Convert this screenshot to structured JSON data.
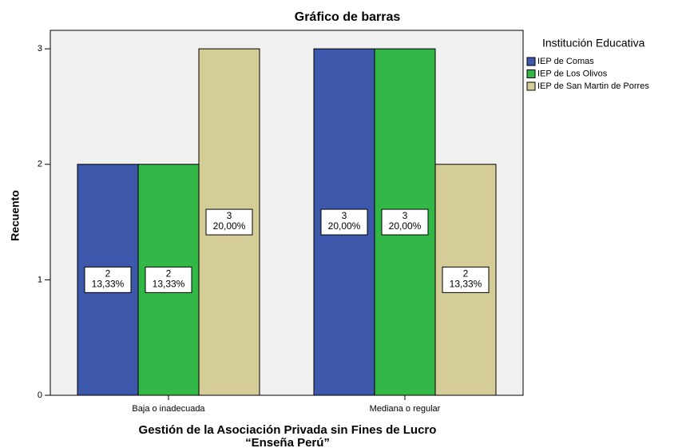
{
  "chart_data": {
    "type": "bar",
    "title": "Gráfico de barras",
    "xlabel": [
      "Gestión de la Asociación Privada sin Fines de Lucro",
      "“Enseña Perú”"
    ],
    "ylabel": "Recuento",
    "legend_title": "Institución Educativa",
    "legend": "right",
    "categories": [
      "Baja o inadecuada",
      "Mediana o regular"
    ],
    "series": [
      {
        "name": "IEP de Comas",
        "color": "#3d57ab",
        "values": [
          2,
          3
        ],
        "percent_labels": [
          "13,33%",
          "20,00%"
        ]
      },
      {
        "name": "IEP de Los Olivos",
        "color": "#33b848",
        "values": [
          2,
          3
        ],
        "percent_labels": [
          "13,33%",
          "20,00%"
        ]
      },
      {
        "name": "IEP de San Martin de Porres",
        "color": "#d4cd98",
        "values": [
          3,
          2
        ],
        "percent_labels": [
          "20,00%",
          "13,33%"
        ]
      }
    ],
    "ylim": [
      0,
      3.16
    ],
    "yticks": [
      0,
      1,
      2,
      3
    ],
    "grid": false
  }
}
